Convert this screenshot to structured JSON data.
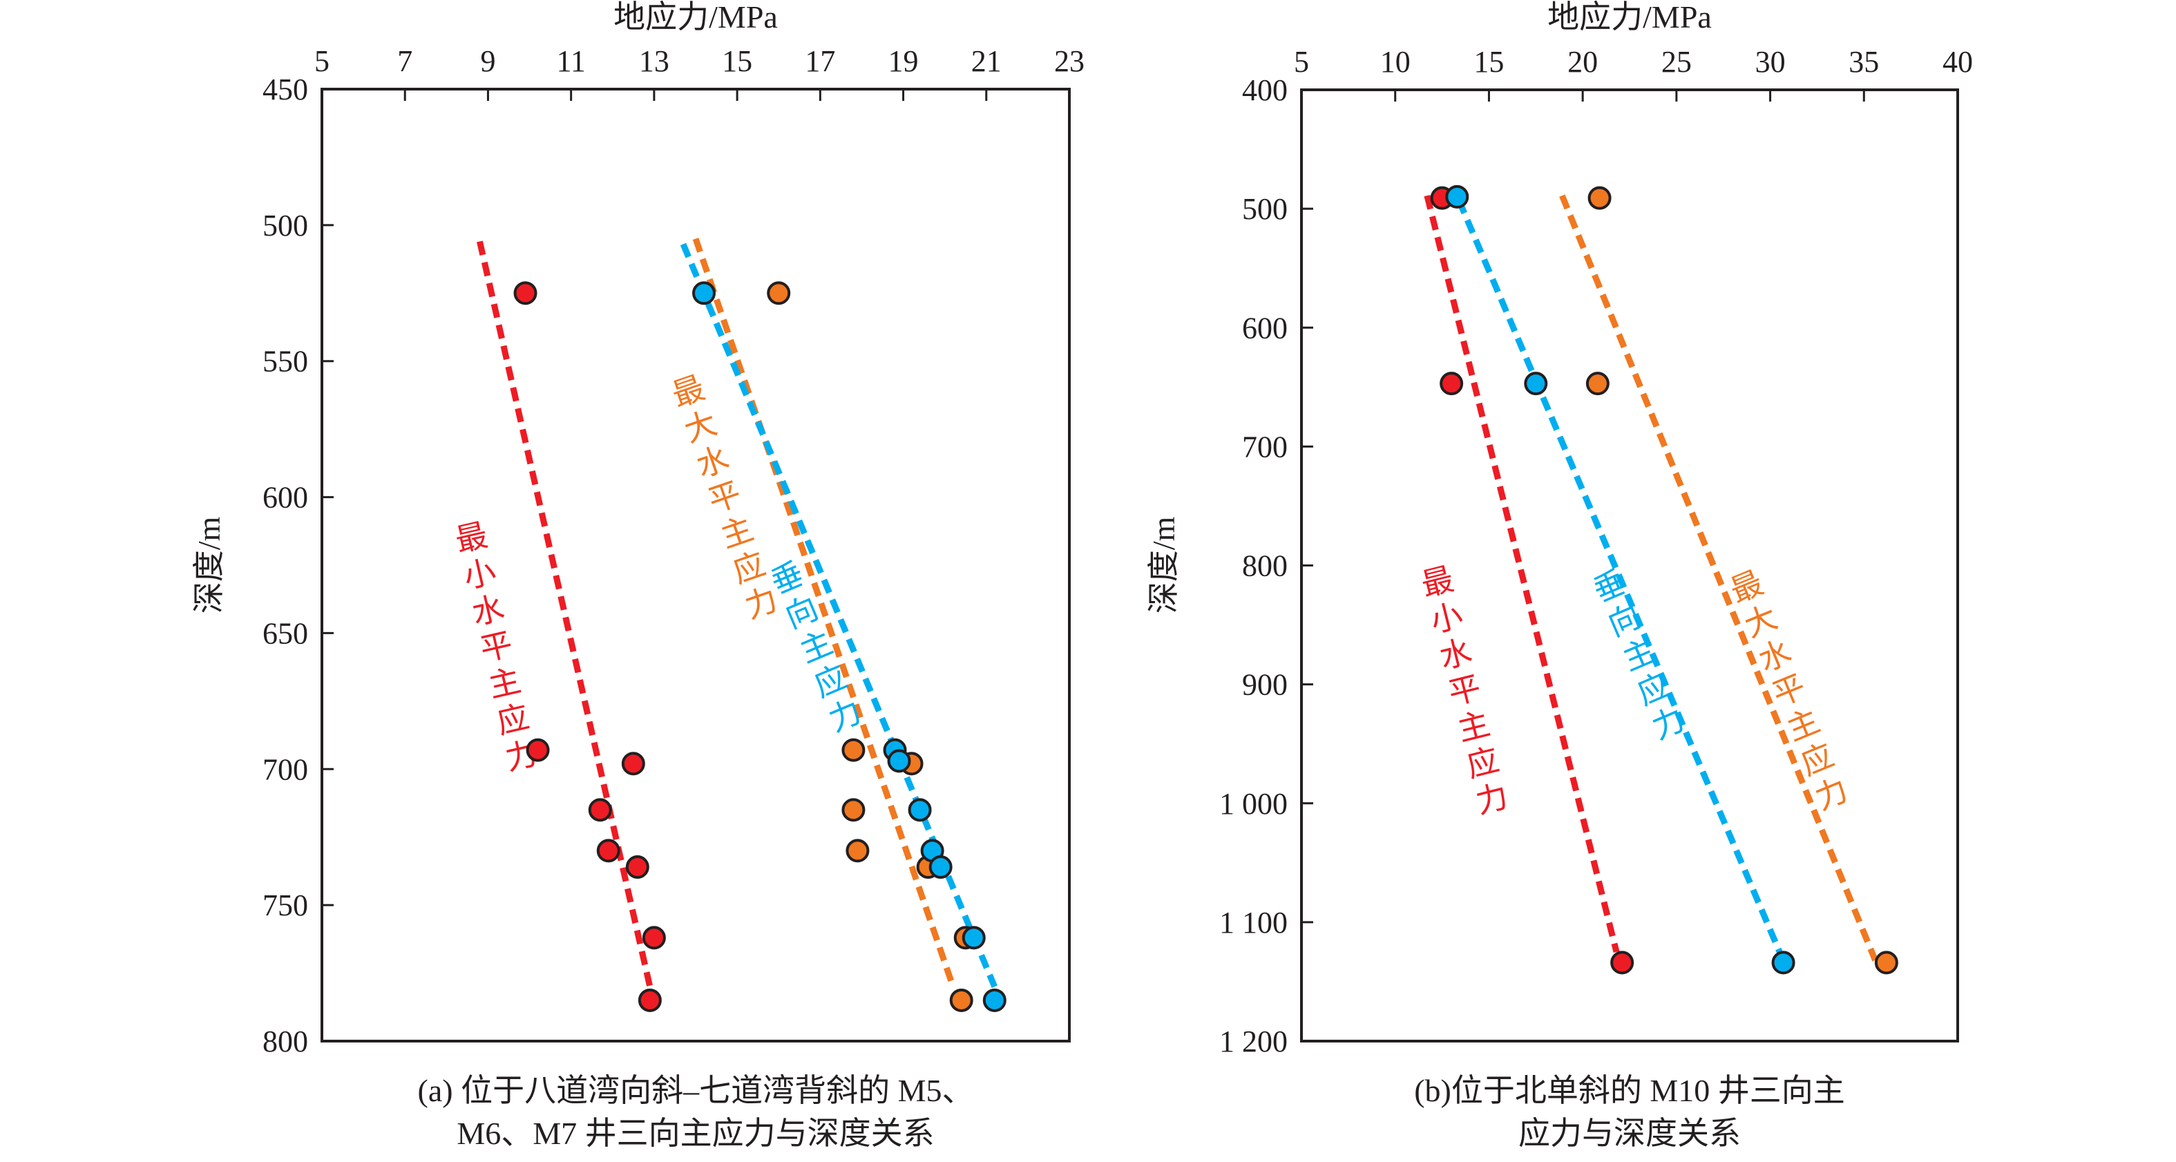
{
  "colors": {
    "min_horizontal": "#ed1c24",
    "max_horizontal": "#f07820",
    "vertical": "#00aeef",
    "axis": "#231f20"
  },
  "chart_data": [
    {
      "id": "a",
      "type": "scatter",
      "title": "",
      "caption_lines": [
        "(a) 位于八道湾向斜–七道湾背斜的 M5、",
        "M6、M7 井三向主应力与深度关系"
      ],
      "xlabel": "地应力/MPa",
      "ylabel": "深度/m",
      "xlim": [
        5,
        23
      ],
      "ylim": [
        450,
        800
      ],
      "y_inverted": true,
      "x_axis_position": "top",
      "grid": false,
      "xticks": [
        5,
        7,
        9,
        11,
        13,
        15,
        17,
        19,
        21,
        23
      ],
      "xtick_labels": [
        "5",
        "7",
        "9",
        "11",
        "13",
        "15",
        "17",
        "19",
        "21",
        "23"
      ],
      "yticks": [
        450,
        500,
        550,
        600,
        650,
        700,
        750,
        800
      ],
      "ytick_labels": [
        "450",
        "500",
        "550",
        "600",
        "650",
        "700",
        "750",
        "800"
      ],
      "series": [
        {
          "name": "最小水平主应力",
          "color_key": "min_horizontal",
          "points": [
            [
              9.9,
              525
            ],
            [
              10.2,
              693
            ],
            [
              12.5,
              698
            ],
            [
              11.7,
              715
            ],
            [
              11.9,
              730
            ],
            [
              12.6,
              736
            ],
            [
              13.0,
              762
            ],
            [
              12.9,
              785
            ]
          ],
          "trend": [
            [
              8.8,
              506
            ],
            [
              12.9,
              780
            ]
          ],
          "label": "最小水平主应力",
          "label_anchor": [
            9.2,
            655
          ]
        },
        {
          "name": "最大水平主应力",
          "color_key": "max_horizontal",
          "points": [
            [
              16.0,
              525
            ],
            [
              17.8,
              693
            ],
            [
              19.2,
              698
            ],
            [
              17.8,
              715
            ],
            [
              17.9,
              730
            ],
            [
              19.6,
              736
            ],
            [
              20.5,
              762
            ],
            [
              20.4,
              785
            ]
          ],
          "trend": [
            [
              14.0,
              505
            ],
            [
              20.2,
              780
            ]
          ],
          "label": "最大水平主应力",
          "label_anchor": [
            14.7,
            600
          ]
        },
        {
          "name": "垂向主应力",
          "color_key": "vertical",
          "points": [
            [
              14.2,
              525
            ],
            [
              18.8,
              693
            ],
            [
              18.9,
              697
            ],
            [
              19.4,
              715
            ],
            [
              19.7,
              730
            ],
            [
              19.9,
              736
            ],
            [
              20.7,
              762
            ],
            [
              21.2,
              785
            ]
          ],
          "trend": [
            [
              13.7,
              507
            ],
            [
              21.2,
              780
            ]
          ],
          "label": "垂向主应力",
          "label_anchor": [
            16.9,
            655
          ]
        }
      ]
    },
    {
      "id": "b",
      "type": "scatter",
      "title": "",
      "caption_lines": [
        "(b)位于北单斜的 M10 井三向主",
        "应力与深度关系"
      ],
      "xlabel": "地应力/MPa",
      "ylabel": "深度/m",
      "xlim": [
        5,
        40
      ],
      "ylim": [
        400,
        1200
      ],
      "y_inverted": true,
      "x_axis_position": "top",
      "grid": false,
      "xticks": [
        5,
        10,
        15,
        20,
        25,
        30,
        35,
        40
      ],
      "xtick_labels": [
        "5",
        "10",
        "15",
        "20",
        "25",
        "30",
        "35",
        "40"
      ],
      "yticks": [
        400,
        500,
        600,
        700,
        800,
        900,
        1000,
        1100,
        1200
      ],
      "ytick_labels": [
        "400",
        "500",
        "600",
        "700",
        "800",
        "900",
        "1 000",
        "1 100",
        "1 200"
      ],
      "series": [
        {
          "name": "最小水平主应力",
          "color_key": "min_horizontal",
          "points": [
            [
              12.5,
              491
            ],
            [
              13.0,
              647
            ],
            [
              22.1,
              1134
            ]
          ],
          "trend": [
            [
              11.7,
              489
            ],
            [
              21.8,
              1125
            ]
          ],
          "label": "最小水平主应力",
          "label_anchor": [
            13.7,
            905
          ]
        },
        {
          "name": "垂向主应力",
          "color_key": "vertical",
          "points": [
            [
              13.3,
              490
            ],
            [
              17.5,
              647
            ],
            [
              30.7,
              1134
            ]
          ],
          "trend": [
            [
              13.4,
              493
            ],
            [
              30.5,
              1125
            ]
          ],
          "label": "垂向主应力",
          "label_anchor": [
            23.0,
            875
          ]
        },
        {
          "name": "最大水平主应力",
          "color_key": "max_horizontal",
          "points": [
            [
              20.9,
              491
            ],
            [
              20.8,
              647
            ],
            [
              36.2,
              1134
            ]
          ],
          "trend": [
            [
              18.9,
              489
            ],
            [
              35.6,
              1132
            ]
          ],
          "label": "最大水平主应力",
          "label_anchor": [
            31.0,
            905
          ]
        }
      ]
    }
  ]
}
